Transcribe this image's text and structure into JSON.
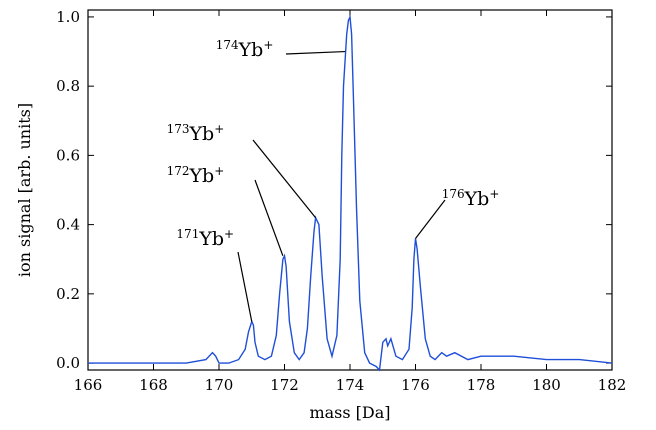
{
  "chart_data": {
    "type": "line",
    "title": "",
    "xlabel": "mass [Da]",
    "ylabel": "ion signal [arb. units]",
    "xlim": [
      166,
      182
    ],
    "ylim": [
      -0.02,
      1.02
    ],
    "xticks": [
      166,
      168,
      170,
      172,
      174,
      176,
      178,
      180,
      182
    ],
    "xtick_labels": [
      "166",
      "168",
      "170",
      "172",
      "174",
      "176",
      "178",
      "180",
      "182"
    ],
    "yticks": [
      0.0,
      0.2,
      0.4,
      0.6,
      0.8,
      1.0
    ],
    "ytick_labels": [
      "0.0",
      "0.2",
      "0.4",
      "0.6",
      "0.8",
      "1.0"
    ],
    "grid": false,
    "line_color": "#1f4fd8",
    "series": [
      {
        "x": [
          166.0,
          167.0,
          168.0,
          169.0,
          169.6,
          169.8,
          169.9,
          170.0,
          170.3,
          170.6,
          170.8,
          170.9,
          171.0,
          171.05,
          171.1,
          171.2,
          171.4,
          171.6,
          171.75,
          171.85,
          171.95,
          172.0,
          172.05,
          172.15,
          172.3,
          172.45,
          172.6,
          172.7,
          172.8,
          172.9,
          172.95,
          173.05,
          173.15,
          173.3,
          173.45,
          173.6,
          173.7,
          173.75,
          173.8,
          173.9,
          173.95,
          174.0,
          174.05,
          174.1,
          174.2,
          174.3,
          174.45,
          174.6,
          174.8,
          174.9,
          175.0,
          175.1,
          175.15,
          175.25,
          175.4,
          175.6,
          175.8,
          175.9,
          175.95,
          176.0,
          176.05,
          176.15,
          176.3,
          176.45,
          176.6,
          176.8,
          176.95,
          177.2,
          177.6,
          178.0,
          179.0,
          180.0,
          181.0,
          182.0
        ],
        "y": [
          0.0,
          0.0,
          0.0,
          0.0,
          0.01,
          0.03,
          0.02,
          0.0,
          0.0,
          0.01,
          0.04,
          0.09,
          0.12,
          0.11,
          0.06,
          0.02,
          0.01,
          0.02,
          0.08,
          0.2,
          0.3,
          0.31,
          0.28,
          0.12,
          0.03,
          0.01,
          0.03,
          0.1,
          0.25,
          0.38,
          0.42,
          0.4,
          0.25,
          0.07,
          0.02,
          0.08,
          0.3,
          0.6,
          0.8,
          0.95,
          0.99,
          1.0,
          0.95,
          0.78,
          0.45,
          0.18,
          0.03,
          0.0,
          -0.01,
          -0.02,
          0.06,
          0.07,
          0.05,
          0.07,
          0.02,
          0.01,
          0.04,
          0.16,
          0.3,
          0.36,
          0.33,
          0.22,
          0.07,
          0.02,
          0.01,
          0.03,
          0.02,
          0.03,
          0.01,
          0.02,
          0.02,
          0.01,
          0.01,
          0.0
        ]
      }
    ],
    "annotations": [
      {
        "isotope": "171",
        "element": "Yb",
        "charge": "+",
        "x": 171.0,
        "y": 0.12
      },
      {
        "isotope": "172",
        "element": "Yb",
        "charge": "+",
        "x": 171.95,
        "y": 0.31
      },
      {
        "isotope": "173",
        "element": "Yb",
        "charge": "+",
        "x": 172.95,
        "y": 0.42
      },
      {
        "isotope": "174",
        "element": "Yb",
        "charge": "+",
        "x": 173.85,
        "y": 0.9
      },
      {
        "isotope": "176",
        "element": "Yb",
        "charge": "+",
        "x": 176.0,
        "y": 0.36
      }
    ]
  }
}
